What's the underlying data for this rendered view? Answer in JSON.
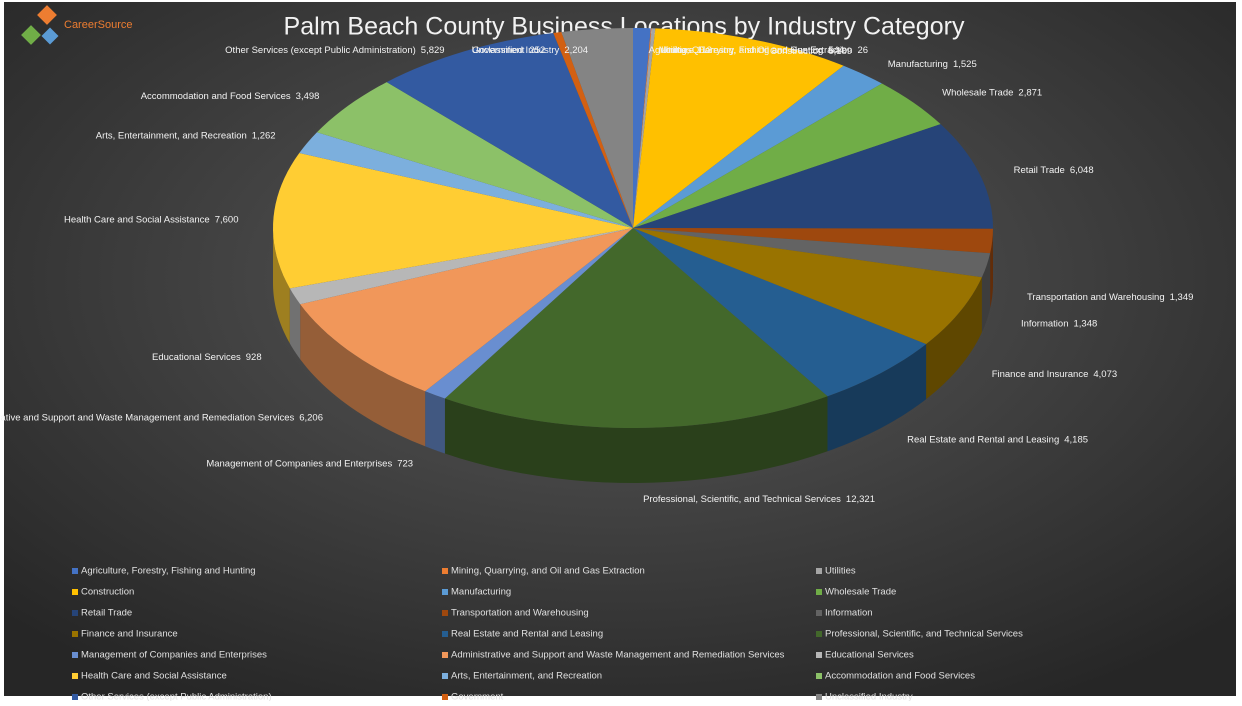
{
  "logo": "CareerSource",
  "chart_data": {
    "type": "pie",
    "title": "Palm Beach County Business Locations by Industry Category",
    "categories": [
      "Agriculture, Forestry, Fishing and Hunting",
      "Mining, Quarrying, and Oil and Gas Extraction",
      "Utilities",
      "Construction",
      "Manufacturing",
      "Wholesale Trade",
      "Retail Trade",
      "Transportation and Warehousing",
      "Information",
      "Finance and Insurance",
      "Real Estate and Rental and Leasing",
      "Professional, Scientific, and Technical Services",
      "Management of Companies and Enterprises",
      "Administrative and Support and Waste Management and Remediation Services",
      "Educational Services",
      "Health Care and Social Assistance",
      "Arts, Entertainment, and Recreation",
      "Accommodation and Food Services",
      "Other Services (except Public Administration)",
      "Government",
      "Unclassified Industry"
    ],
    "values": [
      544,
      26,
      113,
      6189,
      1525,
      2871,
      6048,
      1349,
      1348,
      4073,
      4185,
      12321,
      723,
      6206,
      928,
      7600,
      1262,
      3498,
      5829,
      252,
      2204
    ],
    "value_labels": [
      "544",
      "26",
      "113",
      "6,189",
      "1,525",
      "2,871",
      "6,048",
      "1,349",
      "1,348",
      "4,073",
      "4,185",
      "12,321",
      "723",
      "6,206",
      "928",
      "7,600",
      "1,262",
      "3,498",
      "5,829",
      "252",
      "2,204"
    ],
    "colors": [
      "#4472c4",
      "#ed7d31",
      "#a5a5a5",
      "#ffc000",
      "#5b9bd5",
      "#70ad47",
      "#264478",
      "#9e480e",
      "#636363",
      "#997300",
      "#255e91",
      "#43682b",
      "#698ed0",
      "#f1975a",
      "#b7b7b7",
      "#ffcd33",
      "#7cafdd",
      "#8cc168",
      "#335aa1",
      "#d26012",
      "#848484"
    ],
    "legend": "bottom"
  }
}
